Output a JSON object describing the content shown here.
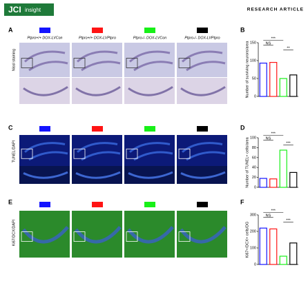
{
  "header": {
    "logo": "JCI",
    "logo_sub": "insight",
    "section": "RESEARCH ARTICLE"
  },
  "panels": [
    "A",
    "B",
    "C",
    "D",
    "E",
    "F"
  ],
  "groups": [
    {
      "label": "Ptpro+/+ DOX-LVCon",
      "color": "#1414ff"
    },
    {
      "label": "Ptpro+/+ DOX-LVPtpro",
      "color": "#ff1414"
    },
    {
      "label": "Ptpro-/- DOX-LVCon",
      "color": "#18f018"
    },
    {
      "label": "Ptpro-/- DOX-LVPtpro",
      "color": "#000000"
    }
  ],
  "row_labels": [
    "Nissl staining",
    "TUNEL/DAPI",
    "Ki67/DCX/DAPI"
  ],
  "chart_data": [
    {
      "type": "bar",
      "y_label": "Number of surviving neurons/area",
      "categories": [
        null,
        null,
        null,
        null
      ],
      "values": [
        93,
        95,
        50,
        60
      ],
      "colors": [
        "#1414ff",
        "#ff1414",
        "#18f018",
        "#000000"
      ],
      "ylim": [
        0,
        150
      ],
      "yticks": [
        0,
        50,
        100,
        150
      ],
      "annotations": [
        "***",
        "NS",
        "**"
      ]
    },
    {
      "type": "bar",
      "y_label": "Number of TUNEL+ cells/area",
      "categories": [
        null,
        null,
        null,
        null
      ],
      "values": [
        18,
        17,
        75,
        30
      ],
      "colors": [
        "#1414ff",
        "#ff1414",
        "#18f018",
        "#000000"
      ],
      "ylim": [
        0,
        100
      ],
      "yticks": [
        0,
        20,
        40,
        60,
        80,
        100
      ],
      "annotations": [
        "***",
        "NS",
        "***"
      ]
    },
    {
      "type": "bar",
      "y_label": "Ki67+/DCX+ cells/DG",
      "categories": [
        null,
        null,
        null,
        null
      ],
      "values": [
        220,
        215,
        50,
        130
      ],
      "colors": [
        "#1414ff",
        "#ff1414",
        "#18f018",
        "#000000"
      ],
      "ylim": [
        0,
        300
      ],
      "yticks": [
        0,
        100,
        200,
        300
      ],
      "annotations": [
        "***",
        "NS",
        "***"
      ]
    }
  ]
}
